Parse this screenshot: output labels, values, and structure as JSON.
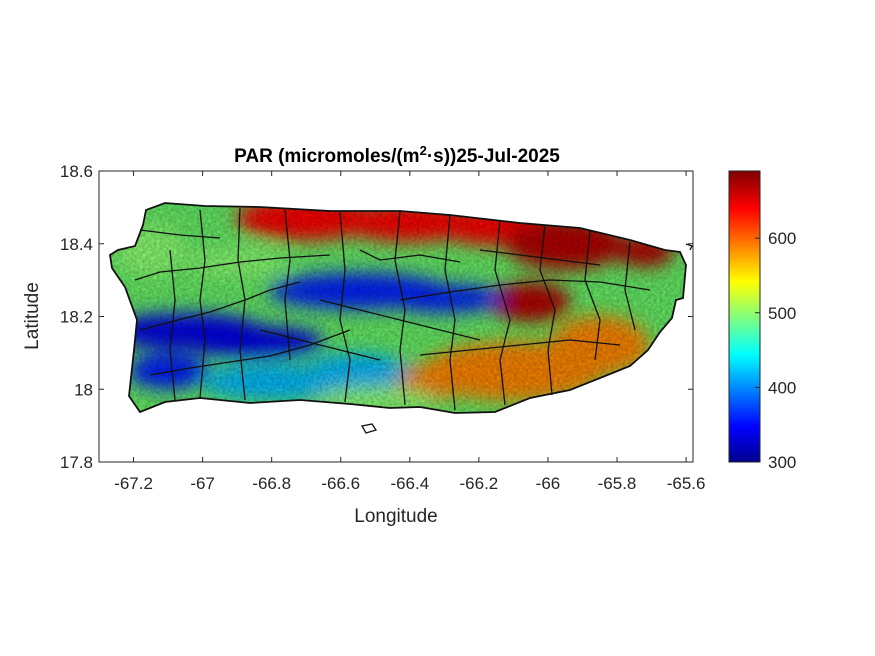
{
  "chart_data": {
    "type": "heatmap",
    "title_main": "PAR (micromoles/(m",
    "title_sup": "2",
    "title_rest": "·s))25-Jul-2025",
    "xlabel": "Longitude",
    "ylabel": "Latitude",
    "xlim": [
      -67.3,
      -65.58
    ],
    "ylim": [
      17.8,
      18.6
    ],
    "xticks": [
      -67.2,
      -67,
      -66.8,
      -66.6,
      -66.4,
      -66.2,
      -66,
      -65.8,
      -65.6
    ],
    "yticks": [
      17.8,
      18,
      18.2,
      18.4,
      18.6
    ],
    "colorbar": {
      "range": [
        300,
        690
      ],
      "ticks": [
        300,
        400,
        500,
        600
      ],
      "colormap": "jet"
    },
    "field_description_values": [
      {
        "region": "north-coast",
        "value": 640
      },
      {
        "region": "north-east",
        "value": 670
      },
      {
        "region": "central-west",
        "value": 340
      },
      {
        "region": "central-band",
        "value": 360
      },
      {
        "region": "south-east",
        "value": 590
      },
      {
        "region": "south-west",
        "value": 420
      },
      {
        "region": "west-tip",
        "value": 500
      }
    ]
  }
}
